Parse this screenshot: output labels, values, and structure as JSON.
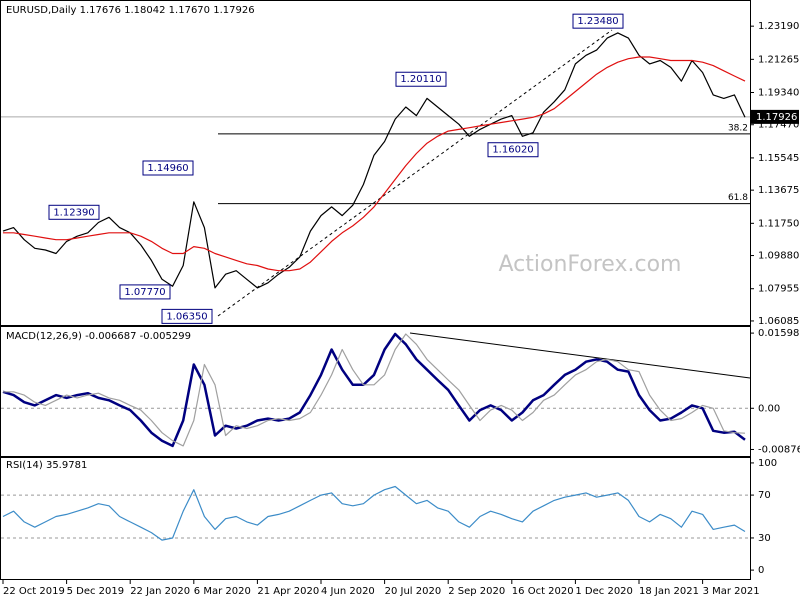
{
  "chart_data": [
    {
      "type": "line",
      "title": "EURUSD,Daily 1.17676 1.18042 1.17670 1.17926",
      "watermark": "ActionForex.com",
      "categories": [
        "22 Oct 2019",
        null,
        null,
        null,
        null,
        null,
        "5 Dec 2019",
        null,
        null,
        null,
        null,
        null,
        "22 Jan 2020",
        null,
        null,
        null,
        null,
        null,
        "6 Mar 2020",
        null,
        null,
        null,
        null,
        null,
        "21 Apr 2020",
        null,
        null,
        null,
        null,
        null,
        "4 Jun 2020",
        null,
        null,
        null,
        null,
        null,
        "20 Jul 2020",
        null,
        null,
        null,
        null,
        null,
        "2 Sep 2020",
        null,
        null,
        null,
        null,
        null,
        "16 Oct 2020",
        null,
        null,
        null,
        null,
        null,
        "1 Dec 2020",
        null,
        null,
        null,
        null,
        null,
        "18 Jan 2021",
        null,
        null,
        null,
        null,
        null,
        "3 Mar 2021",
        null,
        null,
        null,
        null
      ],
      "series": [
        {
          "color": "#000000",
          "values": [
            1.113,
            1.115,
            1.108,
            1.103,
            1.102,
            1.1,
            1.107,
            1.11,
            1.112,
            1.118,
            1.121,
            1.115,
            1.112,
            1.105,
            1.096,
            1.085,
            1.081,
            1.093,
            1.13,
            1.115,
            1.08,
            1.088,
            1.09,
            1.085,
            1.08,
            1.083,
            1.088,
            1.092,
            1.098,
            1.113,
            1.122,
            1.127,
            1.122,
            1.128,
            1.14,
            1.157,
            1.165,
            1.178,
            1.185,
            1.18,
            1.19,
            1.185,
            1.18,
            1.175,
            1.168,
            1.172,
            1.175,
            1.178,
            1.18,
            1.168,
            1.17,
            1.182,
            1.188,
            1.195,
            1.21,
            1.215,
            1.218,
            1.225,
            1.228,
            1.225,
            1.215,
            1.21,
            1.212,
            1.208,
            1.2,
            1.212,
            1.205,
            1.192,
            1.19,
            1.192,
            1.179
          ]
        },
        {
          "color": "#e01010",
          "values": [
            1.112,
            1.112,
            1.111,
            1.11,
            1.109,
            1.108,
            1.108,
            1.109,
            1.11,
            1.111,
            1.112,
            1.112,
            1.112,
            1.11,
            1.107,
            1.103,
            1.1,
            1.1,
            1.104,
            1.103,
            1.1,
            1.098,
            1.096,
            1.094,
            1.093,
            1.091,
            1.09,
            1.09,
            1.091,
            1.095,
            1.101,
            1.107,
            1.112,
            1.116,
            1.121,
            1.127,
            1.135,
            1.143,
            1.151,
            1.158,
            1.164,
            1.168,
            1.171,
            1.172,
            1.173,
            1.174,
            1.175,
            1.176,
            1.177,
            1.178,
            1.179,
            1.181,
            1.184,
            1.189,
            1.194,
            1.199,
            1.204,
            1.208,
            1.211,
            1.213,
            1.214,
            1.214,
            1.213,
            1.212,
            1.212,
            1.212,
            1.211,
            1.209,
            1.206,
            1.203,
            1.2
          ]
        }
      ],
      "ylim": [
        1.0585,
        1.2465
      ],
      "yticks": [
        {
          "value": 1.2319,
          "label": "1.23190"
        },
        {
          "value": 1.21265,
          "label": "1.21265"
        },
        {
          "value": 1.1934,
          "label": "1.19340"
        },
        {
          "value": 1.1747,
          "label": "1.17470"
        },
        {
          "value": 1.15545,
          "label": "1.15545"
        },
        {
          "value": 1.13675,
          "label": "1.13675"
        },
        {
          "value": 1.1175,
          "label": "1.11750"
        },
        {
          "value": 1.0988,
          "label": "1.09880"
        },
        {
          "value": 1.07955,
          "label": "1.07955"
        },
        {
          "value": 1.06085,
          "label": "1.06085"
        }
      ],
      "last_price": {
        "value": 1.17926,
        "label": "1.17926"
      },
      "annotations": [
        {
          "value": 1.2348,
          "label": "1.23480"
        },
        {
          "value": 1.2011,
          "label": "1.20110"
        },
        {
          "value": 1.1602,
          "label": "1.16020"
        },
        {
          "value": 1.1496,
          "label": "1.14960"
        },
        {
          "value": 1.1239,
          "label": "1.12390"
        },
        {
          "value": 1.0777,
          "label": "1.07770"
        },
        {
          "value": 1.0635,
          "label": "1.06350"
        }
      ],
      "fib_levels": [
        {
          "ratio": 38.2,
          "price": 1.1694
        },
        {
          "ratio": 61.8,
          "price": 1.1289
        }
      ]
    },
    {
      "type": "line",
      "title": "MACD(12,26,9) -0.006687 -0.005299",
      "series": [
        {
          "color": "#000080",
          "values": [
            0.0035,
            0.0028,
            0.0013,
            0.0006,
            0.0017,
            0.0028,
            0.0022,
            0.0028,
            0.0032,
            0.0022,
            0.0017,
            0.0006,
            -0.0004,
            -0.0026,
            -0.0052,
            -0.0069,
            -0.008,
            -0.0026,
            0.0093,
            0.005,
            -0.0058,
            -0.0037,
            -0.0043,
            -0.0037,
            -0.0026,
            -0.0022,
            -0.0026,
            -0.0022,
            -0.0009,
            0.0028,
            0.0071,
            0.0125,
            0.0082,
            0.005,
            0.005,
            0.0071,
            0.0125,
            0.0158,
            0.0136,
            0.0104,
            0.0082,
            0.006,
            0.0039,
            0.0006,
            -0.0026,
            -0.0004,
            0.0006,
            -0.0004,
            -0.0026,
            -0.0009,
            0.0017,
            0.0028,
            0.005,
            0.0071,
            0.0082,
            0.0099,
            0.0104,
            0.0099,
            0.0082,
            0.0078,
            0.0028,
            -0.0004,
            -0.0026,
            -0.0022,
            -0.0009,
            0.0006,
            0,
            -0.0048,
            -0.0052,
            -0.005,
            -0.0067
          ]
        },
        {
          "color": "#a0a0a0",
          "values": [
            0.0035,
            0.0035,
            0.0028,
            0.0013,
            0.0006,
            0.0017,
            0.0028,
            0.0022,
            0.0028,
            0.0032,
            0.0022,
            0.0017,
            0.0006,
            -0.0004,
            -0.0026,
            -0.0052,
            -0.0069,
            -0.008,
            -0.0026,
            0.0093,
            0.005,
            -0.0058,
            -0.0037,
            -0.0043,
            -0.0037,
            -0.0026,
            -0.0022,
            -0.0026,
            -0.0022,
            -0.0009,
            0.0028,
            0.0071,
            0.0125,
            0.0082,
            0.005,
            0.005,
            0.0071,
            0.0125,
            0.0158,
            0.0136,
            0.0104,
            0.0082,
            0.006,
            0.0039,
            0.0006,
            -0.0026,
            -0.0004,
            0.0006,
            -0.0004,
            -0.0026,
            -0.0009,
            0.0017,
            0.0028,
            0.005,
            0.0071,
            0.0082,
            0.0099,
            0.0104,
            0.0099,
            0.0082,
            0.0078,
            0.0028,
            -0.0004,
            -0.0026,
            -0.0022,
            -0.0009,
            0.0006,
            0,
            -0.0048,
            -0.0052,
            -0.0053
          ]
        }
      ],
      "ylim": [
        -0.01015,
        0.01728
      ],
      "yticks": [
        0.015983,
        {
          "value": 0,
          "label": "0.00"
        },
        -0.008762
      ],
      "dashed_levels": [
        0
      ]
    },
    {
      "type": "line",
      "title": "RSI(14) 35.9781",
      "series": [
        {
          "color": "#3c8cc8",
          "values": [
            50,
            55,
            45,
            40,
            45,
            50,
            52,
            55,
            58,
            62,
            60,
            50,
            45,
            40,
            35,
            28,
            30,
            55,
            75,
            50,
            38,
            48,
            50,
            45,
            42,
            50,
            52,
            55,
            60,
            65,
            70,
            72,
            62,
            60,
            62,
            70,
            75,
            78,
            70,
            62,
            65,
            58,
            55,
            45,
            40,
            50,
            55,
            52,
            48,
            45,
            55,
            60,
            65,
            68,
            70,
            72,
            68,
            70,
            72,
            65,
            50,
            45,
            52,
            48,
            40,
            55,
            52,
            38,
            40,
            42,
            36
          ]
        }
      ],
      "ylim": [
        -8.3,
        104.6
      ],
      "yticks": [
        100,
        70,
        30,
        0
      ],
      "dashed_levels": [
        70,
        30
      ]
    }
  ]
}
